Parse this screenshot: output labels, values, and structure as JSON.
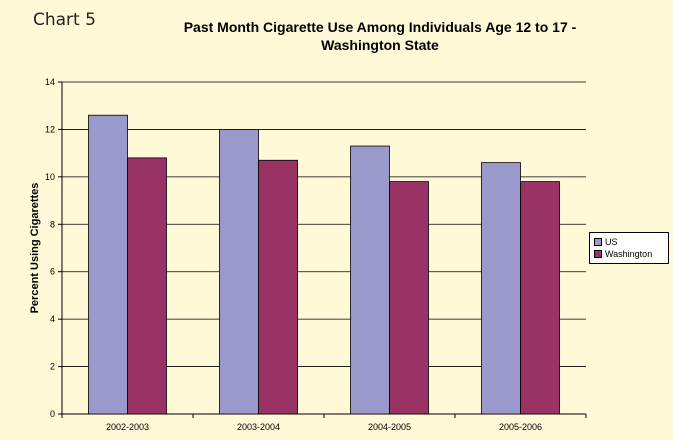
{
  "header": {
    "chart_label": "Chart 5",
    "title_line1": "Past Month Cigarette Use Among Individuals Age 12 to 17 -",
    "title_line2": "Washington State"
  },
  "colors": {
    "background": "#fff9d8",
    "us": "#9999cc",
    "washington": "#993366",
    "gridline": "#000000"
  },
  "chart_data": {
    "type": "bar",
    "title": "Past Month Cigarette Use Among Individuals Age 12 to 17 - Washington State",
    "xlabel": "",
    "ylabel": "Percent Using Cigarettes",
    "categories": [
      "2002-2003",
      "2003-2004",
      "2004-2005",
      "2005-2006"
    ],
    "series": [
      {
        "name": "US",
        "values": [
          12.6,
          12.0,
          11.3,
          10.6
        ]
      },
      {
        "name": "Washington",
        "values": [
          10.8,
          10.7,
          9.8,
          9.8
        ]
      }
    ],
    "ylim": [
      0,
      14
    ],
    "yticks": [
      0,
      2,
      4,
      6,
      8,
      10,
      12,
      14
    ],
    "grid": true,
    "legend": "right"
  }
}
